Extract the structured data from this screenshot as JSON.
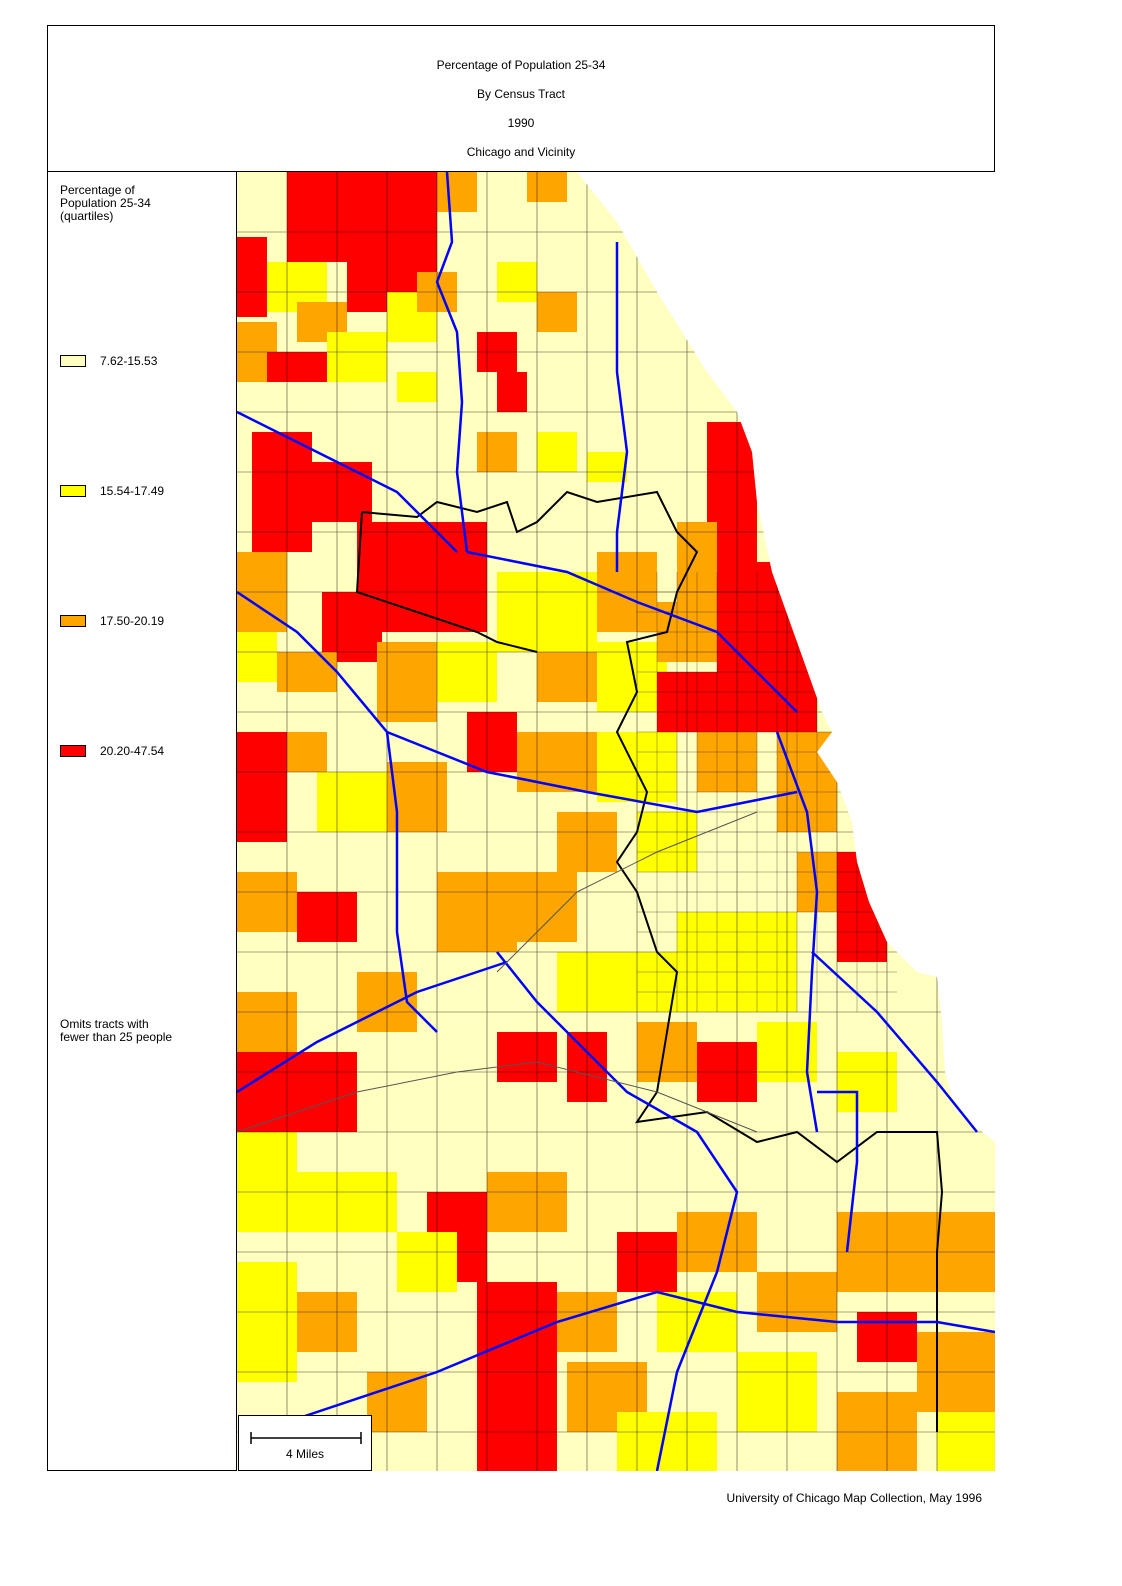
{
  "title": {
    "line1": "Percentage of Population 25-34",
    "line2": "By Census Tract",
    "line3": "1990",
    "line4": "Chicago and Vicinity"
  },
  "legend": {
    "heading": [
      "Percentage of",
      "Population 25-34",
      "(quartiles)"
    ],
    "items": [
      {
        "label": "7.62-15.53",
        "color": "#ffffc0"
      },
      {
        "label": "15.54-17.49",
        "color": "#ffff00"
      },
      {
        "label": "17.50-20.19",
        "color": "#ffa500"
      },
      {
        "label": "20.20-47.54",
        "color": "#ff0000"
      }
    ],
    "note": [
      "Omits tracts with",
      "fewer than 25 people"
    ]
  },
  "scale": {
    "label": "4 Miles"
  },
  "credit": "University of Chicago Map Collection, May 1996",
  "colors": {
    "q1": "#ffffc0",
    "q2": "#ffff00",
    "q3": "#ffa500",
    "q4": "#ff0000",
    "highways": "#0000ff",
    "boundaries": "#000000",
    "lake": "#ffffff"
  }
}
